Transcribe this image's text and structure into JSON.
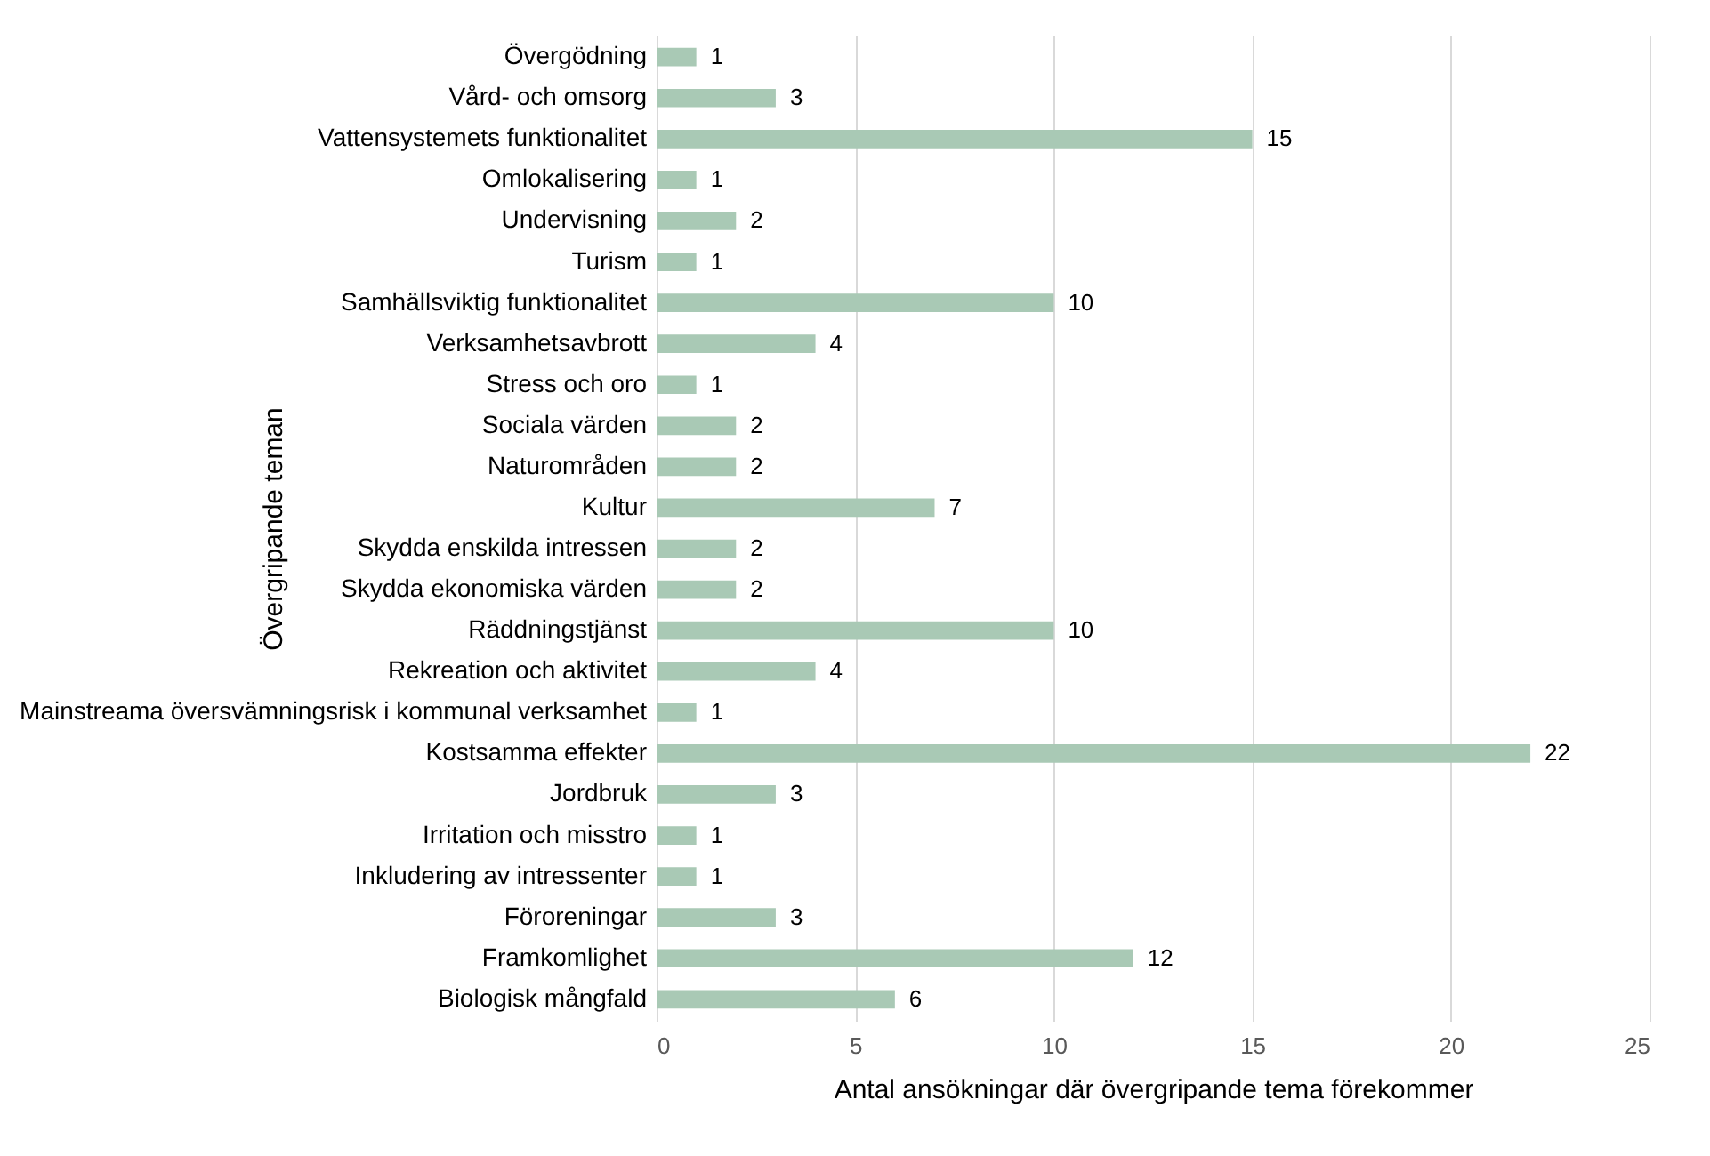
{
  "chart_data": {
    "type": "bar",
    "orientation": "horizontal",
    "xlabel": "Antal ansökningar där övergripande tema förekommer",
    "ylabel": "Övergripande teman",
    "categories": [
      "Övergödning",
      "Vård- och omsorg",
      "Vattensystemets funktionalitet",
      "Omlokalisering",
      "Undervisning",
      "Turism",
      "Samhällsviktig funktionalitet",
      "Verksamhetsavbrott",
      "Stress och oro",
      "Sociala värden",
      "Naturområden",
      "Kultur",
      "Skydda enskilda intressen",
      "Skydda ekonomiska värden",
      "Räddningstjänst",
      "Rekreation och aktivitet",
      "Mainstreama översvämningsrisk i kommunal verksamhet",
      "Kostsamma effekter",
      "Jordbruk",
      "Irritation och misstro",
      "Inkludering av intressenter",
      "Föroreningar",
      "Framkomlighet",
      "Biologisk mångfald"
    ],
    "values": [
      1,
      3,
      15,
      1,
      2,
      1,
      10,
      4,
      1,
      2,
      2,
      7,
      2,
      2,
      10,
      4,
      1,
      22,
      3,
      1,
      1,
      3,
      12,
      6
    ],
    "color": "#a9c9b5",
    "xlim": [
      0,
      25
    ],
    "xticks": [
      0,
      5,
      10,
      15,
      20,
      25
    ],
    "grid": "x",
    "data_labels": true
  }
}
